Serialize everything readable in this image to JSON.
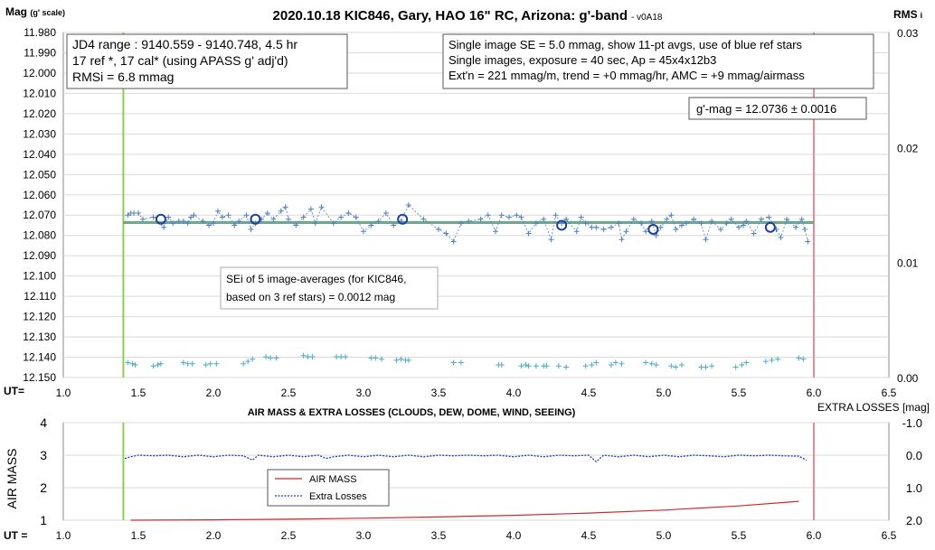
{
  "chart_data": [
    {
      "type": "scatter",
      "title": "2020.10.18 KIC846, Gary, HAO 16\" RC, Arizona: g'-band",
      "version": "- v0A18",
      "ylabel_main": "Mag",
      "ylabel_sub": "(g' scale)",
      "y2label_main": "RMS",
      "y2label_sub": "i",
      "x_axis_caption": "UT=",
      "xlim": [
        1.0,
        6.5
      ],
      "x_ticks": [
        "1.0",
        "1.5",
        "2.0",
        "2.5",
        "3.0",
        "3.5",
        "4.0",
        "4.5",
        "5.0",
        "5.5",
        "6.0",
        "6.5"
      ],
      "ylim": [
        11.98,
        12.15
      ],
      "y_ticks": [
        "11.980",
        "11.990",
        "12.000",
        "12.010",
        "12.020",
        "12.030",
        "12.040",
        "12.050",
        "12.060",
        "12.070",
        "12.080",
        "12.090",
        "12.100",
        "12.110",
        "12.120",
        "12.130",
        "12.140",
        "12.150"
      ],
      "y2lim": [
        0.0,
        0.03
      ],
      "y2_ticks": [
        "0.00",
        "0.01",
        "0.02",
        "0.03"
      ],
      "annotations": {
        "box_left": [
          "JD4 range : 9140.559 - 9140.748,  4.5  hr",
          "17 ref *, 17 cal* (using APASS g' adj'd)",
          "RMSi = 6.8 mmag"
        ],
        "box_right": [
          "Single image SE = 5.0 mmag, show  11-pt avgs, use of blue ref stars",
          "Single images, exposure = 40 sec, Ap = 45x4x12b3",
          "Ext'n = 221 mmag/m, trend =  +0 mmag/hr, AMC = +9 mmag/airmass"
        ],
        "mag_box": "g'-mag = 12.0736 ± 0.0016",
        "sei_box": [
          "SEi of 5 image-averages (for KIC846,",
          "based on 3 ref stars) = 0.0012 mag"
        ]
      },
      "series": [
        {
          "kind": "single-image",
          "x": [
            1.43,
            1.45,
            1.47,
            1.5,
            1.53,
            1.6,
            1.67,
            1.7,
            1.73,
            1.77,
            1.8,
            1.83,
            1.85,
            1.87,
            1.93,
            1.97,
            2.0,
            2.03,
            2.06,
            2.1,
            2.14,
            2.17,
            2.22,
            2.25,
            2.28,
            2.32,
            2.36,
            2.4,
            2.45,
            2.48,
            2.5,
            2.55,
            2.6,
            2.65,
            2.68,
            2.72,
            2.8,
            2.85,
            2.9,
            2.95,
            3.0,
            3.05,
            3.1,
            3.15,
            3.2,
            3.25,
            3.3,
            3.4,
            3.5,
            3.55,
            3.6,
            3.65,
            3.7,
            3.78,
            3.83,
            3.88,
            3.92,
            3.97,
            4.02,
            4.05,
            4.1,
            4.15,
            4.2,
            4.25,
            4.28,
            4.32,
            4.35,
            4.42,
            4.45,
            4.48,
            4.52,
            4.55,
            4.6,
            4.65,
            4.7,
            4.72,
            4.75,
            4.8,
            4.85,
            4.88,
            4.92,
            4.95,
            4.98,
            5.02,
            5.05,
            5.08,
            5.12,
            5.15,
            5.2,
            5.25,
            5.28,
            5.32,
            5.38,
            5.42,
            5.45,
            5.5,
            5.53,
            5.55,
            5.6,
            5.65,
            5.7,
            5.75,
            5.78,
            5.82,
            5.88,
            5.92,
            5.94,
            5.96
          ],
          "y": [
            12.07,
            12.069,
            12.069,
            12.069,
            12.072,
            12.071,
            12.076,
            12.071,
            12.074,
            12.073,
            12.073,
            12.074,
            12.071,
            12.07,
            12.073,
            12.075,
            12.074,
            12.068,
            12.071,
            12.07,
            12.075,
            12.073,
            12.07,
            12.077,
            12.074,
            12.072,
            12.069,
            12.072,
            12.068,
            12.066,
            12.072,
            12.075,
            12.071,
            12.067,
            12.074,
            12.066,
            12.074,
            12.071,
            12.069,
            12.071,
            12.078,
            12.075,
            12.073,
            12.069,
            12.075,
            12.073,
            12.065,
            12.072,
            12.077,
            12.079,
            12.083,
            12.074,
            12.073,
            12.072,
            12.07,
            12.078,
            12.07,
            12.071,
            12.07,
            12.071,
            12.079,
            12.074,
            12.072,
            12.082,
            12.07,
            12.074,
            12.072,
            12.078,
            12.071,
            12.074,
            12.076,
            12.076,
            12.077,
            12.076,
            12.074,
            12.082,
            12.078,
            12.072,
            12.074,
            12.078,
            12.073,
            12.08,
            12.076,
            12.072,
            12.07,
            12.077,
            12.075,
            12.074,
            12.072,
            12.074,
            12.082,
            12.073,
            12.077,
            12.074,
            12.072,
            12.076,
            12.075,
            12.073,
            12.079,
            12.072,
            12.071,
            12.077,
            12.081,
            12.072,
            12.076,
            12.072,
            12.077,
            12.083
          ]
        },
        {
          "kind": "averages",
          "x": [
            1.65,
            2.28,
            3.26,
            4.32,
            4.93,
            5.71
          ],
          "y": [
            12.072,
            12.072,
            12.072,
            12.075,
            12.077,
            12.076
          ]
        },
        {
          "kind": "rms",
          "x": [
            1.43,
            1.46,
            1.48,
            1.6,
            1.63,
            1.65,
            1.8,
            1.83,
            1.86,
            1.95,
            1.98,
            2.02,
            2.2,
            2.23,
            2.26,
            2.35,
            2.38,
            2.42,
            2.6,
            2.63,
            2.66,
            2.82,
            2.85,
            2.88,
            3.05,
            3.08,
            3.12,
            3.22,
            3.25,
            3.28,
            3.3,
            3.6,
            3.65,
            3.9,
            3.92,
            4.05,
            4.08,
            4.1,
            4.15,
            4.2,
            4.22,
            4.3,
            4.35,
            4.48,
            4.52,
            4.55,
            4.65,
            4.68,
            4.72,
            4.88,
            4.92,
            4.95,
            5.05,
            5.08,
            5.12,
            5.25,
            5.28,
            5.32,
            5.48,
            5.52,
            5.55,
            5.68,
            5.72,
            5.76,
            5.9,
            5.93
          ],
          "y": [
            0.0013,
            0.0012,
            0.0011,
            0.001,
            0.0011,
            0.0012,
            0.0013,
            0.0012,
            0.0012,
            0.0011,
            0.0012,
            0.0012,
            0.0012,
            0.0014,
            0.0016,
            0.0018,
            0.0017,
            0.0017,
            0.0019,
            0.0018,
            0.0018,
            0.0018,
            0.0018,
            0.0018,
            0.0017,
            0.0017,
            0.0016,
            0.0015,
            0.0016,
            0.0015,
            0.0015,
            0.0013,
            0.0013,
            0.0011,
            0.0011,
            0.001,
            0.0011,
            0.001,
            0.001,
            0.001,
            0.001,
            0.001,
            0.0009,
            0.001,
            0.0011,
            0.0013,
            0.0011,
            0.0013,
            0.0012,
            0.0013,
            0.0012,
            0.0011,
            0.001,
            0.0009,
            0.0011,
            0.0009,
            0.0009,
            0.001,
            0.0009,
            0.0011,
            0.0013,
            0.0014,
            0.0015,
            0.0016,
            0.0017,
            0.0016
          ]
        }
      ],
      "mean_mag": 12.0736,
      "ut_start": 1.4,
      "ut_end": 6.0,
      "colors": {
        "points": "#4f81bd",
        "avg": "#1f3f99",
        "fit": "#5aa06a",
        "rms": "#4aacc6",
        "start": "#8fcf4f",
        "end": "#ee8a8a"
      }
    },
    {
      "type": "line",
      "title": "AIR MASS & EXTRA LOSSES (CLOUDS, DEW, DOME, WIND, SEEING)",
      "y2label": "EXTRA LOSSES [mag]",
      "ylabel": "AIR MASS",
      "x_axis_caption": "UT =",
      "xlim": [
        1.0,
        6.5
      ],
      "x_ticks": [
        "1.0",
        "1.5",
        "2.0",
        "2.5",
        "3.0",
        "3.5",
        "4.0",
        "4.5",
        "5.0",
        "5.5",
        "6.0",
        "6.5"
      ],
      "ylim": [
        1,
        4
      ],
      "y_ticks": [
        "1",
        "2",
        "3",
        "4"
      ],
      "y2lim": [
        2.0,
        -1.0
      ],
      "y2_ticks": [
        "-1.0",
        "0.0",
        "1.0",
        "2.0"
      ],
      "legend": [
        "AIR MASS",
        "Extra Losses"
      ],
      "series": [
        {
          "name": "AIR MASS",
          "x": [
            1.45,
            2.0,
            2.5,
            3.0,
            3.5,
            4.0,
            4.5,
            5.0,
            5.5,
            5.9
          ],
          "y": [
            1.0,
            1.01,
            1.03,
            1.06,
            1.1,
            1.15,
            1.22,
            1.31,
            1.44,
            1.58
          ]
        },
        {
          "name": "Extra Losses",
          "x": [
            1.41,
            1.45,
            1.5,
            1.6,
            1.7,
            1.8,
            1.9,
            2.0,
            2.1,
            2.2,
            2.26,
            2.3,
            2.4,
            2.5,
            2.6,
            2.7,
            2.75,
            2.8,
            2.9,
            3.0,
            3.1,
            3.2,
            3.3,
            3.4,
            3.5,
            3.6,
            3.7,
            3.8,
            3.9,
            4.0,
            4.1,
            4.2,
            4.3,
            4.4,
            4.5,
            4.55,
            4.6,
            4.7,
            4.8,
            4.9,
            5.0,
            5.1,
            5.2,
            5.3,
            5.4,
            5.5,
            5.6,
            5.7,
            5.8,
            5.9,
            5.95
          ],
          "y": [
            0.1,
            0.05,
            0.0,
            0.02,
            0.0,
            0.05,
            0.0,
            0.05,
            0.0,
            0.02,
            0.15,
            0.0,
            0.05,
            0.0,
            0.05,
            0.0,
            0.1,
            0.05,
            0.0,
            0.05,
            0.0,
            0.05,
            0.0,
            0.05,
            0.0,
            0.02,
            0.0,
            0.02,
            0.0,
            0.05,
            0.0,
            0.05,
            0.0,
            0.02,
            0.0,
            0.2,
            0.0,
            0.05,
            0.0,
            0.05,
            0.0,
            0.05,
            0.0,
            0.02,
            0.05,
            0.0,
            0.02,
            0.0,
            0.02,
            0.03,
            0.15
          ]
        }
      ],
      "colors": {
        "airmass": "#d62728",
        "losses": "#1f3fa8"
      }
    }
  ]
}
